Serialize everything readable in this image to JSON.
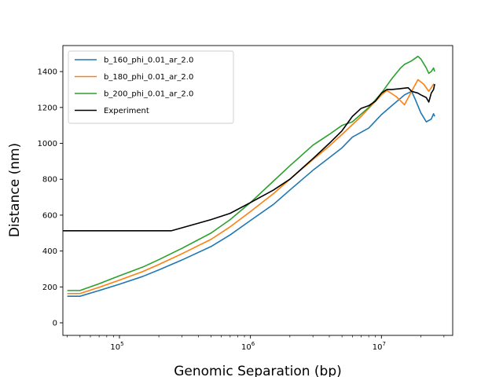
{
  "chart_data": {
    "type": "line",
    "xlabel": "Genomic Separation (bp)",
    "ylabel": "Distance (nm)",
    "xscale": "log",
    "xlim": [
      37000,
      35000000
    ],
    "ylim": [
      -70,
      1545
    ],
    "x_ticks": [
      {
        "value": 100000,
        "base": "10",
        "exp": "5"
      },
      {
        "value": 1000000,
        "base": "10",
        "exp": "6"
      },
      {
        "value": 10000000,
        "base": "10",
        "exp": "7"
      }
    ],
    "y_ticks": [
      0,
      200,
      400,
      600,
      800,
      1000,
      1200,
      1400
    ],
    "legend_position": "upper left",
    "grid": false,
    "series": [
      {
        "name": "b_160_phi_0.01_ar_2.0",
        "color": "#1f77b4",
        "points": [
          [
            40000,
            148
          ],
          [
            50000,
            148
          ],
          [
            70000,
            180
          ],
          [
            100000,
            215
          ],
          [
            150000,
            258
          ],
          [
            200000,
            295
          ],
          [
            300000,
            350
          ],
          [
            500000,
            425
          ],
          [
            700000,
            490
          ],
          [
            1000000,
            570
          ],
          [
            1500000,
            660
          ],
          [
            2000000,
            740
          ],
          [
            3000000,
            850
          ],
          [
            4000000,
            920
          ],
          [
            5000000,
            975
          ],
          [
            6000000,
            1035
          ],
          [
            8000000,
            1085
          ],
          [
            10000000,
            1160
          ],
          [
            12000000,
            1210
          ],
          [
            15000000,
            1270
          ],
          [
            17000000,
            1290
          ],
          [
            18000000,
            1250
          ],
          [
            20000000,
            1170
          ],
          [
            22000000,
            1120
          ],
          [
            24000000,
            1135
          ],
          [
            25000000,
            1165
          ],
          [
            25500000,
            1150
          ]
        ]
      },
      {
        "name": "b_180_phi_0.01_ar_2.0",
        "color": "#ff7f0e",
        "points": [
          [
            40000,
            163
          ],
          [
            50000,
            163
          ],
          [
            70000,
            198
          ],
          [
            100000,
            238
          ],
          [
            150000,
            285
          ],
          [
            200000,
            325
          ],
          [
            300000,
            385
          ],
          [
            500000,
            465
          ],
          [
            700000,
            535
          ],
          [
            1000000,
            620
          ],
          [
            1500000,
            720
          ],
          [
            2000000,
            800
          ],
          [
            3000000,
            910
          ],
          [
            4000000,
            985
          ],
          [
            5000000,
            1050
          ],
          [
            7000000,
            1150
          ],
          [
            10000000,
            1270
          ],
          [
            11000000,
            1295
          ],
          [
            13000000,
            1260
          ],
          [
            15000000,
            1215
          ],
          [
            17000000,
            1290
          ],
          [
            19000000,
            1355
          ],
          [
            21000000,
            1330
          ],
          [
            23000000,
            1290
          ],
          [
            24000000,
            1310
          ],
          [
            25000000,
            1330
          ],
          [
            25500000,
            1320
          ]
        ]
      },
      {
        "name": "b_200_phi_0.01_ar_2.0",
        "color": "#2ca02c",
        "points": [
          [
            40000,
            180
          ],
          [
            50000,
            180
          ],
          [
            70000,
            218
          ],
          [
            100000,
            262
          ],
          [
            150000,
            310
          ],
          [
            200000,
            352
          ],
          [
            300000,
            415
          ],
          [
            500000,
            500
          ],
          [
            700000,
            575
          ],
          [
            1000000,
            670
          ],
          [
            1500000,
            790
          ],
          [
            2000000,
            875
          ],
          [
            3000000,
            990
          ],
          [
            4000000,
            1050
          ],
          [
            5000000,
            1100
          ],
          [
            6000000,
            1120
          ],
          [
            8000000,
            1200
          ],
          [
            10000000,
            1280
          ],
          [
            12000000,
            1360
          ],
          [
            14000000,
            1420
          ],
          [
            15000000,
            1440
          ],
          [
            17000000,
            1460
          ],
          [
            19000000,
            1485
          ],
          [
            20000000,
            1470
          ],
          [
            22000000,
            1420
          ],
          [
            23000000,
            1390
          ],
          [
            24000000,
            1400
          ],
          [
            25000000,
            1420
          ],
          [
            25500000,
            1400
          ]
        ]
      },
      {
        "name": "Experiment",
        "color": "#000000",
        "points": [
          [
            37000,
            513
          ],
          [
            250000,
            513
          ],
          [
            500000,
            575
          ],
          [
            700000,
            610
          ],
          [
            1000000,
            670
          ],
          [
            1500000,
            740
          ],
          [
            2000000,
            800
          ],
          [
            3000000,
            915
          ],
          [
            4000000,
            1000
          ],
          [
            5000000,
            1070
          ],
          [
            6000000,
            1150
          ],
          [
            7000000,
            1195
          ],
          [
            8000000,
            1210
          ],
          [
            9000000,
            1235
          ],
          [
            10000000,
            1280
          ],
          [
            11000000,
            1300
          ],
          [
            12000000,
            1300
          ],
          [
            14000000,
            1305
          ],
          [
            16000000,
            1310
          ],
          [
            17000000,
            1290
          ],
          [
            19000000,
            1280
          ],
          [
            20000000,
            1270
          ],
          [
            22000000,
            1255
          ],
          [
            23000000,
            1230
          ],
          [
            24000000,
            1280
          ],
          [
            25000000,
            1300
          ],
          [
            25500000,
            1330
          ]
        ]
      }
    ]
  }
}
